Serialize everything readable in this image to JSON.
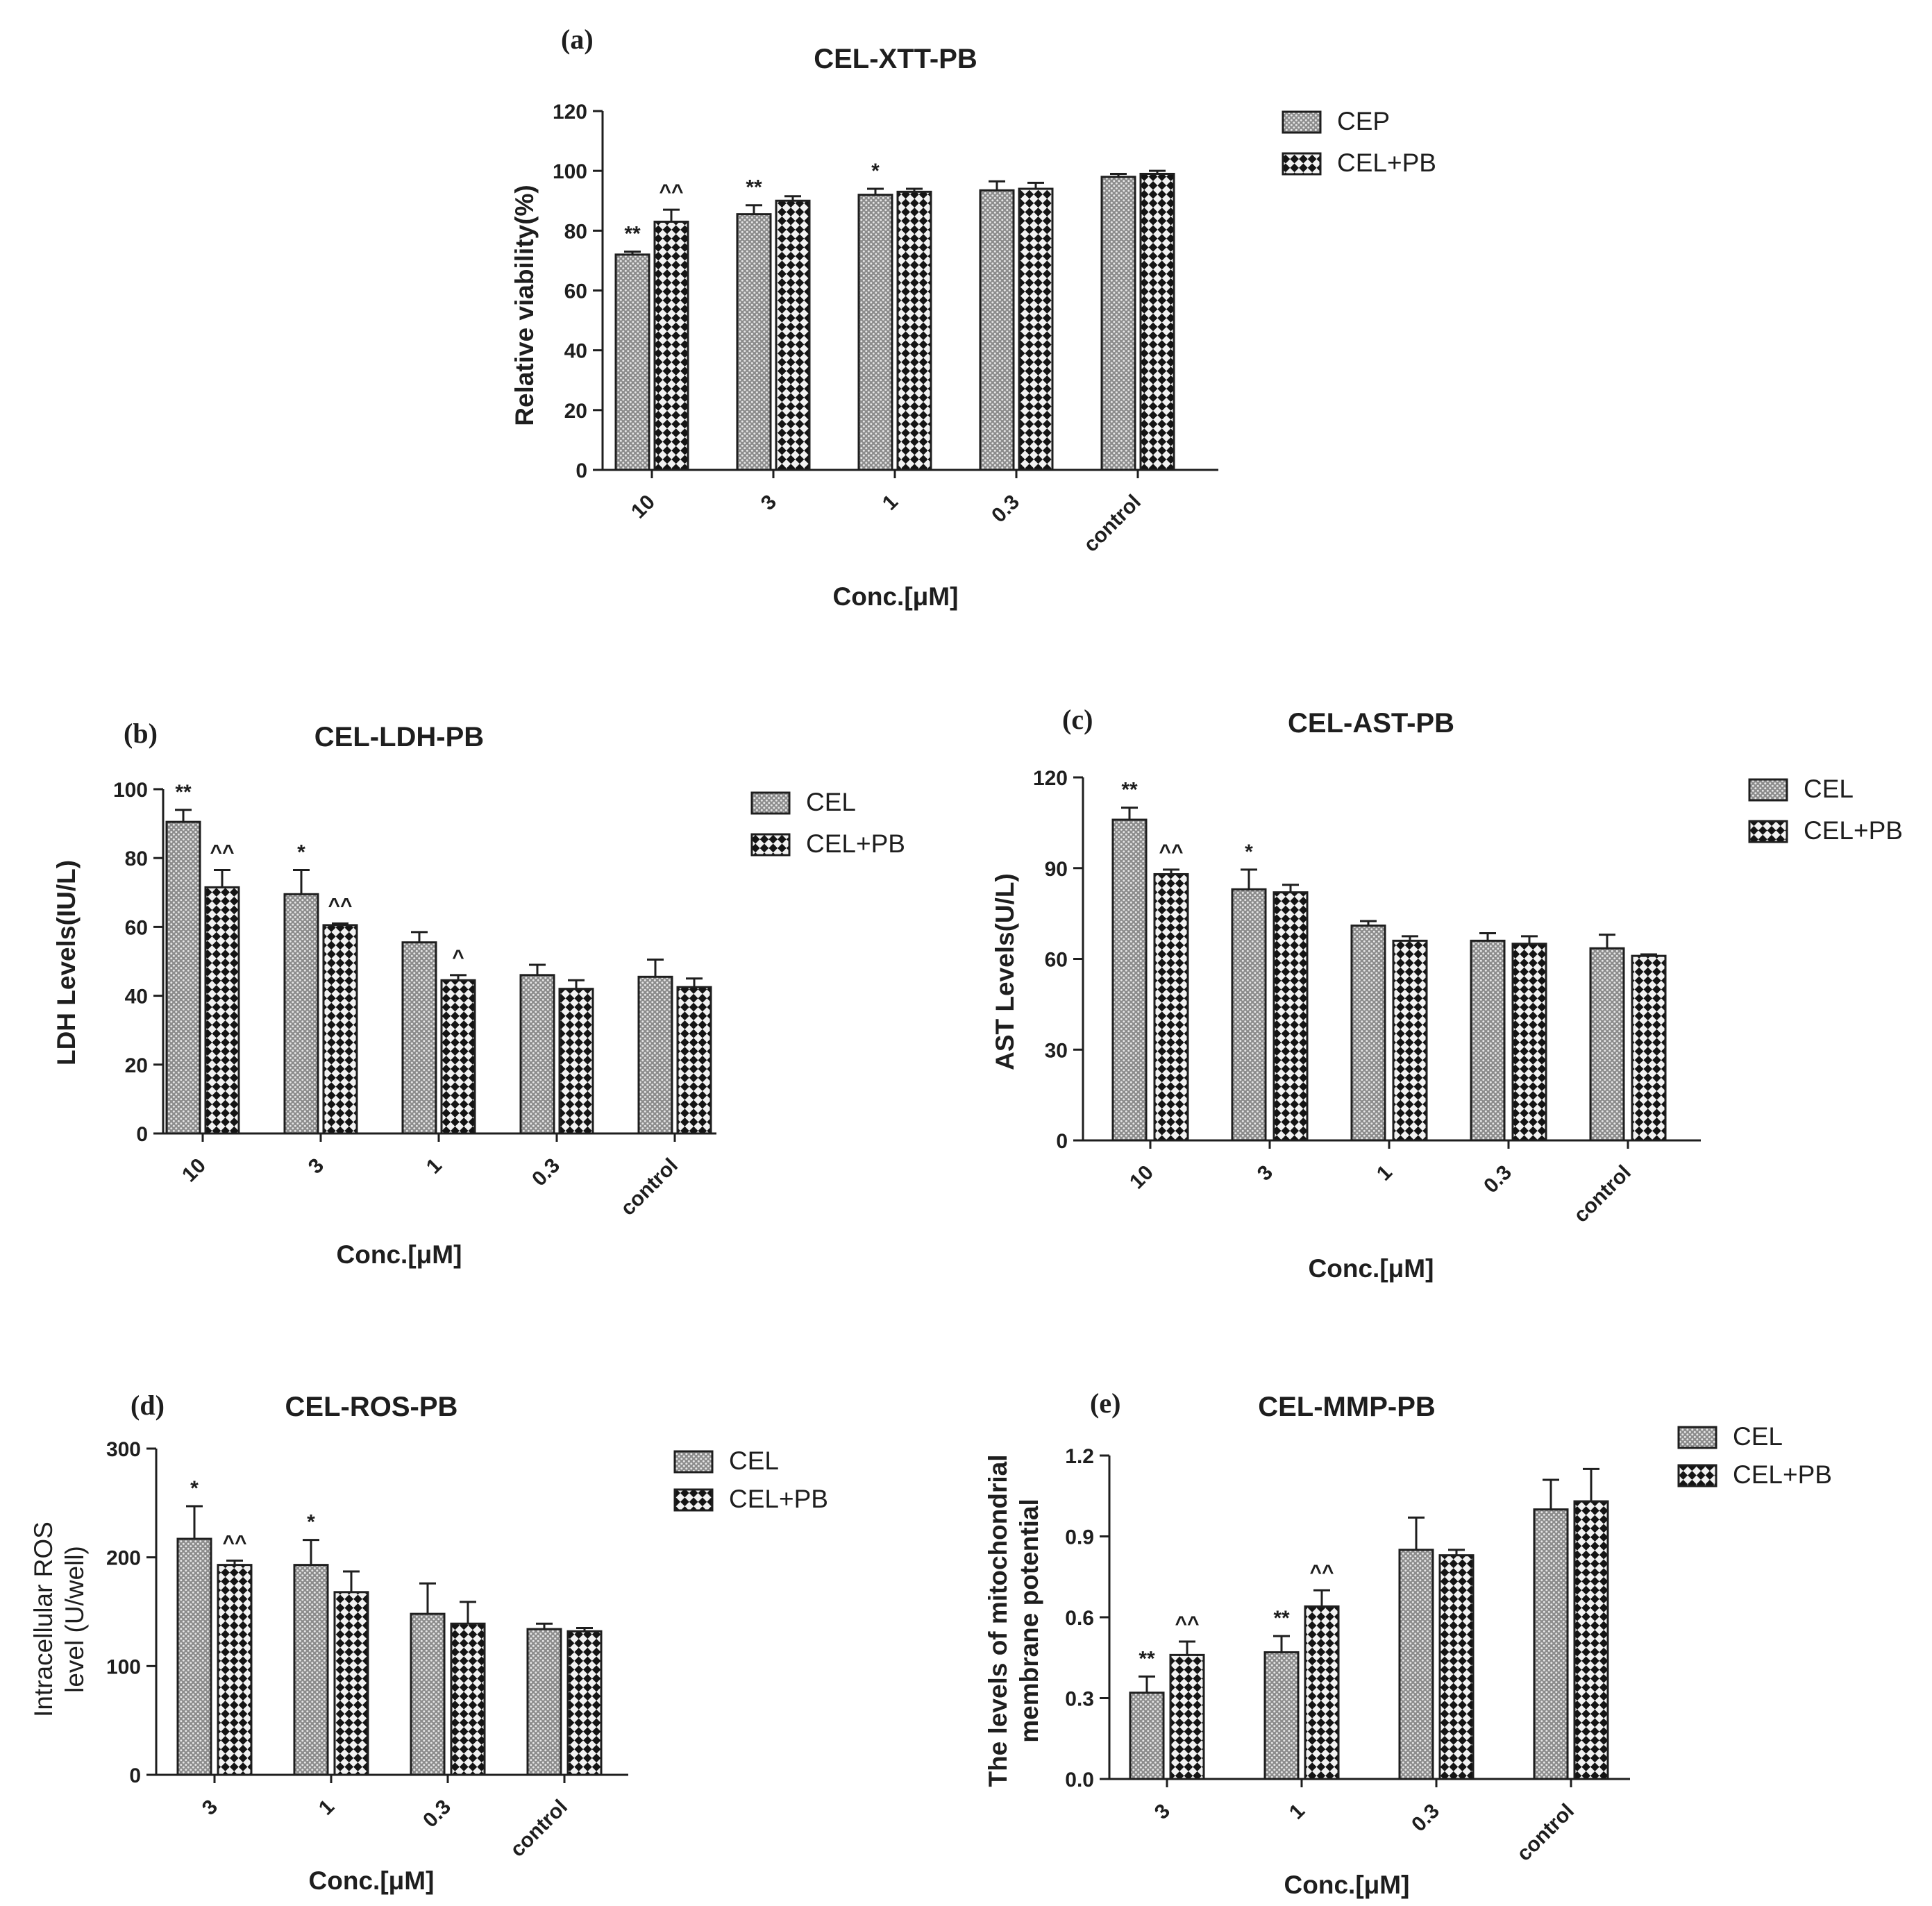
{
  "chart_data": [
    {
      "id": "a",
      "panel_label": "(a)",
      "type": "bar",
      "title": "CEL-XTT-PB",
      "xlabel": "Conc.[μM]",
      "ylabel": "Relative viability(%)",
      "ylim": [
        0,
        120
      ],
      "yticks": [
        0,
        20,
        40,
        60,
        80,
        100,
        120
      ],
      "categories": [
        "10",
        "3",
        "1",
        "0.3",
        "control"
      ],
      "series": [
        {
          "name": "CEP",
          "pattern": "fine",
          "values": [
            72,
            85.5,
            92,
            93.5,
            98
          ],
          "errors": [
            1,
            3,
            2,
            3,
            1
          ],
          "sig": [
            "**",
            "**",
            "*",
            "",
            ""
          ]
        },
        {
          "name": "CEL+PB",
          "pattern": "checker",
          "values": [
            83,
            90,
            93,
            94,
            99
          ],
          "errors": [
            4,
            1.5,
            1,
            2,
            1
          ],
          "sig": [
            "^^",
            "",
            "",
            "",
            ""
          ]
        }
      ],
      "legend_position": "right"
    },
    {
      "id": "b",
      "panel_label": "(b)",
      "type": "bar",
      "title": "CEL-LDH-PB",
      "xlabel": "Conc.[μM]",
      "ylabel": "LDH   Levels(IU/L)",
      "ylim": [
        0,
        100
      ],
      "yticks": [
        0,
        20,
        40,
        60,
        80,
        100
      ],
      "categories": [
        "10",
        "3",
        "1",
        "0.3",
        "control"
      ],
      "series": [
        {
          "name": "CEL",
          "pattern": "fine",
          "values": [
            90.5,
            69.5,
            55.5,
            46,
            45.5
          ],
          "errors": [
            3.5,
            7,
            3,
            3,
            5
          ],
          "sig": [
            "**",
            "*",
            "",
            "",
            ""
          ]
        },
        {
          "name": "CEL+PB",
          "pattern": "checker",
          "values": [
            71.5,
            60.5,
            44.5,
            42,
            42.5
          ],
          "errors": [
            5,
            0.5,
            1.5,
            2.5,
            2.5
          ],
          "sig": [
            "^^",
            "^^",
            "^",
            "",
            ""
          ]
        }
      ],
      "legend_position": "right"
    },
    {
      "id": "c",
      "panel_label": "(c)",
      "type": "bar",
      "title": "CEL-AST-PB",
      "xlabel": "Conc.[μM]",
      "ylabel": "AST Levels(U/L)",
      "ylim": [
        0,
        120
      ],
      "yticks": [
        0,
        30,
        60,
        90,
        120
      ],
      "categories": [
        "10",
        "3",
        "1",
        "0.3",
        "control"
      ],
      "series": [
        {
          "name": "CEL",
          "pattern": "fine",
          "values": [
            106,
            83,
            71,
            66,
            63.5
          ],
          "errors": [
            4,
            6.5,
            1.5,
            2.5,
            4.5
          ],
          "sig": [
            "**",
            "*",
            "",
            "",
            ""
          ]
        },
        {
          "name": "CEL+PB",
          "pattern": "checker",
          "values": [
            88,
            82,
            66,
            65,
            61
          ],
          "errors": [
            1.5,
            2.5,
            1.5,
            2.5,
            0.5
          ],
          "sig": [
            "^^",
            "",
            "",
            "",
            ""
          ]
        }
      ],
      "legend_position": "right"
    },
    {
      "id": "d",
      "panel_label": "(d)",
      "type": "bar",
      "title": "CEL-ROS-PB",
      "xlabel": "Conc.[μM]",
      "ylabel": [
        "Intracellular ROS",
        "level (U/well)"
      ],
      "ylim": [
        0,
        300
      ],
      "yticks": [
        0,
        100,
        200,
        300
      ],
      "categories": [
        "3",
        "1",
        "0.3",
        "control"
      ],
      "series": [
        {
          "name": "CEL",
          "pattern": "fine",
          "values": [
            217,
            193,
            148,
            134
          ],
          "errors": [
            30,
            23,
            28,
            5
          ],
          "sig": [
            "*",
            "*",
            "",
            ""
          ]
        },
        {
          "name": "CEL+PB",
          "pattern": "checker",
          "values": [
            193,
            168,
            139,
            132
          ],
          "errors": [
            4,
            19,
            20,
            3
          ],
          "sig": [
            "^^",
            "",
            "",
            ""
          ]
        }
      ],
      "legend_position": "right"
    },
    {
      "id": "e",
      "panel_label": "(e)",
      "type": "bar",
      "title": "CEL-MMP-PB",
      "xlabel": "Conc.[μM]",
      "ylabel": [
        "The levels of mitochondrial",
        "membrane potential"
      ],
      "ylim": [
        0,
        1.2
      ],
      "yticks": [
        "0.0",
        "0.3",
        "0.6",
        "0.9",
        "1.2"
      ],
      "categories": [
        "3",
        "1",
        "0.3",
        "control"
      ],
      "series": [
        {
          "name": "CEL",
          "pattern": "fine",
          "values": [
            0.32,
            0.47,
            0.85,
            1.0
          ],
          "errors": [
            0.06,
            0.06,
            0.12,
            0.11
          ],
          "sig": [
            "**",
            "**",
            "",
            ""
          ]
        },
        {
          "name": "CEL+PB",
          "pattern": "checker",
          "values": [
            0.46,
            0.64,
            0.83,
            1.03
          ],
          "errors": [
            0.05,
            0.06,
            0.02,
            0.12
          ],
          "sig": [
            "^^",
            "^^",
            "",
            ""
          ]
        }
      ],
      "legend_position": "right"
    }
  ],
  "colors": {
    "ink": "#1e1e1e",
    "fine_bg": "#8c8c8c",
    "fine_dot": "#e6e6e6",
    "checker_dark": "#141414",
    "checker_light": "#f2f2f2"
  }
}
